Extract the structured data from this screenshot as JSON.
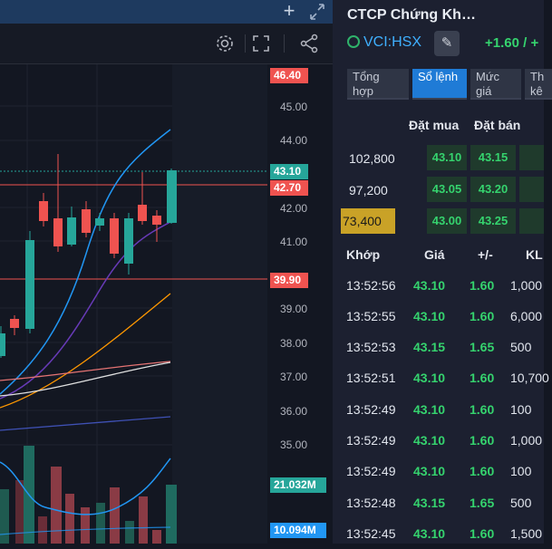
{
  "chart": {
    "price_labels": {
      "top_red": "46.40",
      "current_green": "43.10",
      "ref_red": "42.70",
      "low_red": "39.90",
      "vol_green": "21.032M",
      "vol_blue": "10.094M"
    },
    "ticks": [
      "45.00",
      "44.00",
      "42.00",
      "41.00",
      "39.00",
      "38.00",
      "37.00",
      "36.00",
      "35.00"
    ],
    "colors": {
      "up": "#26a69a",
      "down": "#ef5350",
      "bg": "#131722"
    }
  },
  "panel": {
    "title": "CTCP Chứng Kh…",
    "symbol": "VCI:HSX",
    "change": "+1.60 / +",
    "tabs": [
      "Tổng hợp",
      "Sổ lệnh",
      "Mức giá",
      "Th kê"
    ],
    "orderbook": {
      "headers": {
        "bid": "Đặt mua",
        "ask": "Đặt bán"
      },
      "rows": [
        {
          "vol": "102,800",
          "bid": "43.10",
          "ask": "43.15",
          "highlight": false
        },
        {
          "vol": "97,200",
          "bid": "43.05",
          "ask": "43.20",
          "highlight": false
        },
        {
          "vol": "73,400",
          "bid": "43.00",
          "ask": "43.25",
          "highlight": true
        }
      ]
    },
    "trades": {
      "headers": {
        "time": "Khớp",
        "price": "Giá",
        "chg": "+/-",
        "vol": "KL"
      },
      "rows": [
        {
          "time": "13:52:56",
          "price": "43.10",
          "chg": "1.60",
          "vol": "1,000"
        },
        {
          "time": "13:52:55",
          "price": "43.10",
          "chg": "1.60",
          "vol": "6,000"
        },
        {
          "time": "13:52:53",
          "price": "43.15",
          "chg": "1.65",
          "vol": "500"
        },
        {
          "time": "13:52:51",
          "price": "43.10",
          "chg": "1.60",
          "vol": "10,700"
        },
        {
          "time": "13:52:49",
          "price": "43.10",
          "chg": "1.60",
          "vol": "100"
        },
        {
          "time": "13:52:49",
          "price": "43.10",
          "chg": "1.60",
          "vol": "1,000"
        },
        {
          "time": "13:52:49",
          "price": "43.10",
          "chg": "1.60",
          "vol": "100"
        },
        {
          "time": "13:52:48",
          "price": "43.15",
          "chg": "1.65",
          "vol": "500"
        },
        {
          "time": "13:52:45",
          "price": "43.10",
          "chg": "1.60",
          "vol": "1,500"
        }
      ]
    }
  }
}
